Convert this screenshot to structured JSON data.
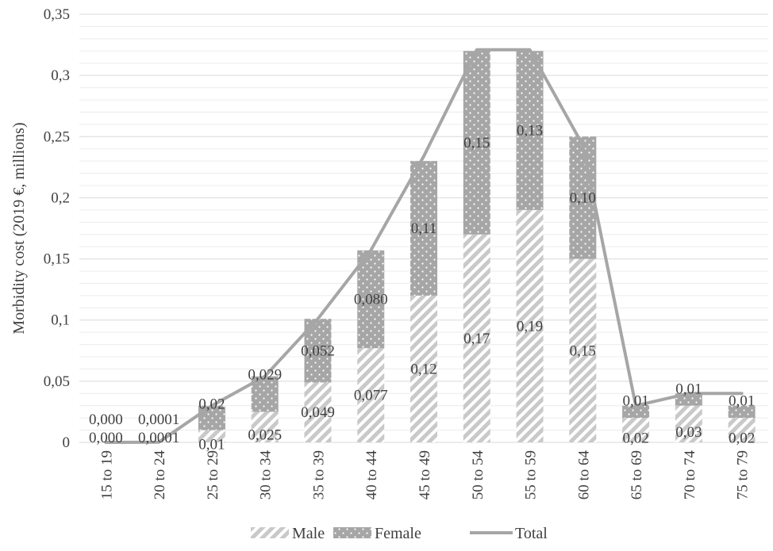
{
  "chart_data": {
    "type": "bar",
    "stacked": true,
    "categories": [
      "15 to 19",
      "20 to 24",
      "25 to 29",
      "30 to 34",
      "35 to 39",
      "40 to 44",
      "45 to 49",
      "50 to 54",
      "55 to 59",
      "60 to 64",
      "65 to 69",
      "70 to 74",
      "75 to 79"
    ],
    "series": [
      {
        "name": "Male",
        "kind": "bar",
        "pattern": "diagonal-hatch",
        "color": "#bfbfbf",
        "values": [
          0.0,
          0.0001,
          0.01,
          0.025,
          0.049,
          0.077,
          0.12,
          0.17,
          0.19,
          0.15,
          0.02,
          0.03,
          0.02
        ],
        "labels": [
          "0,000",
          "0,0001",
          "0,01",
          "0,025",
          "0,049",
          "0,077",
          "0,12",
          "0,17",
          "0,19",
          "0,15",
          "0,02",
          "0,03",
          "0,02"
        ]
      },
      {
        "name": "Female",
        "kind": "bar",
        "pattern": "dotted",
        "color": "#a6a6a6",
        "values": [
          0.0,
          0.0001,
          0.02,
          0.029,
          0.052,
          0.08,
          0.11,
          0.15,
          0.13,
          0.1,
          0.01,
          0.01,
          0.01
        ],
        "labels": [
          "0,000",
          "0,0001",
          "0,02",
          "0,029",
          "0,052",
          "0,080",
          "0,11",
          "0,15",
          "0,13",
          "0,10",
          "0,01",
          "0,01",
          "0,01"
        ]
      },
      {
        "name": "Total",
        "kind": "line",
        "color": "#a6a6a6",
        "values": [
          0.0,
          0.0002,
          0.03,
          0.054,
          0.101,
          0.157,
          0.234,
          0.321,
          0.321,
          0.243,
          0.03,
          0.04,
          0.04
        ]
      }
    ],
    "ylabel": "Morbidity cost (2019 €, millions)",
    "xlabel": "",
    "ylim": [
      0,
      0.35
    ],
    "yticks": [
      0,
      0.05,
      0.1,
      0.15,
      0.2,
      0.25,
      0.3,
      0.35
    ],
    "ytick_labels": [
      "0",
      "0,05",
      "0,1",
      "0,15",
      "0,2",
      "0,25",
      "0,3",
      "0,35"
    ],
    "grid": true,
    "legend": "bottom"
  }
}
